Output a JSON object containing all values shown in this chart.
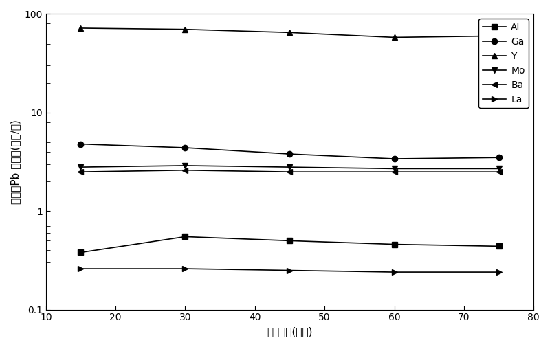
{
  "x": [
    15,
    30,
    45,
    60,
    75
  ],
  "series": {
    "Al": {
      "values": [
        0.38,
        0.55,
        0.5,
        0.46,
        0.44
      ],
      "marker": "s",
      "color": "black",
      "label": "Al"
    },
    "Ga": {
      "values": [
        4.8,
        4.4,
        3.8,
        3.4,
        3.5
      ],
      "marker": "o",
      "color": "black",
      "label": "Ga"
    },
    "Y": {
      "values": [
        72,
        70,
        65,
        58,
        60
      ],
      "marker": "^",
      "color": "black",
      "label": "Y"
    },
    "Mo": {
      "values": [
        2.8,
        2.9,
        2.8,
        2.7,
        2.7
      ],
      "marker": "v",
      "color": "black",
      "label": "Mo"
    },
    "Ba": {
      "values": [
        2.5,
        2.6,
        2.5,
        2.5,
        2.5
      ],
      "marker": "<",
      "color": "black",
      "label": "Ba"
    },
    "La": {
      "values": [
        0.26,
        0.26,
        0.25,
        0.24,
        0.24
      ],
      "marker": ">",
      "color": "black",
      "label": "La"
    }
  },
  "xlabel": "放电时间(分钟)",
  "ylabel": "相对于Pb 的浓度(微克/克)",
  "ylim": [
    0.1,
    100
  ],
  "xlim": [
    10,
    80
  ],
  "xticks": [
    10,
    20,
    30,
    40,
    50,
    60,
    70,
    80
  ],
  "yticks": [
    0.1,
    1,
    10,
    100
  ],
  "background_color": "#ffffff",
  "linewidth": 1.2,
  "markersize": 6
}
